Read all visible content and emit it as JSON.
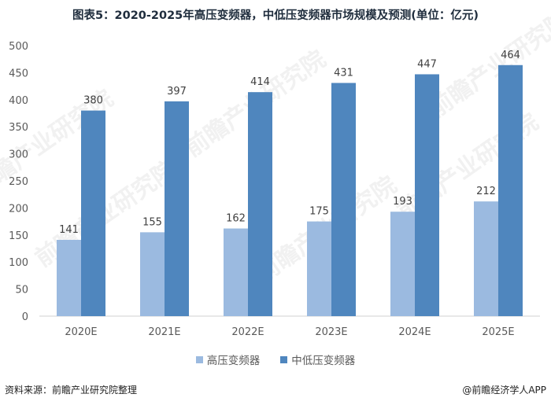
{
  "title": "图表5：2020-2025年高压变频器，中低压变频器市场规模及预测(单位：亿元)",
  "source": "资料来源：前瞻产业研究院整理",
  "credit": "@前瞻经济学人APP",
  "watermark": "前瞻产业研究院",
  "colors": {
    "series_low": "#9bbae0",
    "series_high": "#4f86be",
    "axis": "#d0d0d0"
  },
  "chart_data": {
    "type": "bar",
    "categories": [
      "2020E",
      "2021E",
      "2022E",
      "2023E",
      "2024E",
      "2025E"
    ],
    "series": [
      {
        "name": "高压变频器",
        "values": [
          141,
          155,
          162,
          175,
          193,
          212
        ]
      },
      {
        "name": "中低压变频器",
        "values": [
          380,
          397,
          414,
          431,
          447,
          464
        ]
      }
    ],
    "ylim": [
      0,
      500
    ],
    "yticks": [
      0,
      50,
      100,
      150,
      200,
      250,
      300,
      350,
      400,
      450,
      500
    ],
    "grid": false,
    "legend_position": "bottom"
  }
}
